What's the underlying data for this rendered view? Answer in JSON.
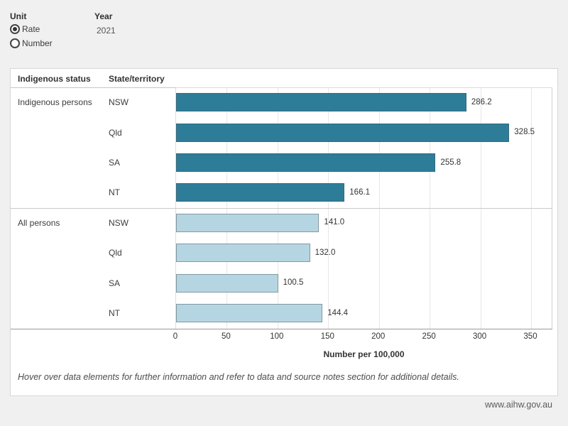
{
  "controls": {
    "unit_label": "Unit",
    "unit_options": [
      {
        "label": "Rate",
        "selected": true
      },
      {
        "label": "Number",
        "selected": false
      }
    ],
    "year_label": "Year",
    "year_value": "2021"
  },
  "chart_data": {
    "type": "bar",
    "orientation": "horizontal",
    "row_header_1": "Indigenous status",
    "row_header_2": "State/territory",
    "groups": [
      {
        "name": "Indigenous persons",
        "color": "#2D7D98",
        "rows": [
          {
            "state": "NSW",
            "value": 286.2,
            "label": "286.2"
          },
          {
            "state": "Qld",
            "value": 328.5,
            "label": "328.5"
          },
          {
            "state": "SA",
            "value": 255.8,
            "label": "255.8"
          },
          {
            "state": "NT",
            "value": 166.1,
            "label": "166.1"
          }
        ]
      },
      {
        "name": "All persons",
        "color": "#B5D5E2",
        "rows": [
          {
            "state": "NSW",
            "value": 141.0,
            "label": "141.0"
          },
          {
            "state": "Qld",
            "value": 132.0,
            "label": "132.0"
          },
          {
            "state": "SA",
            "value": 100.5,
            "label": "100.5"
          },
          {
            "state": "NT",
            "value": 144.4,
            "label": "144.4"
          }
        ]
      }
    ],
    "x_ticks": [
      0,
      50,
      100,
      150,
      200,
      250,
      300,
      350
    ],
    "xlabel": "Number per 100,000",
    "xlim": [
      0,
      371
    ],
    "grid": true,
    "legend": false
  },
  "caption": "Hover over data elements for further information and refer to data and source notes section for additional details.",
  "footer": {
    "website": "www.aihw.gov.au"
  }
}
